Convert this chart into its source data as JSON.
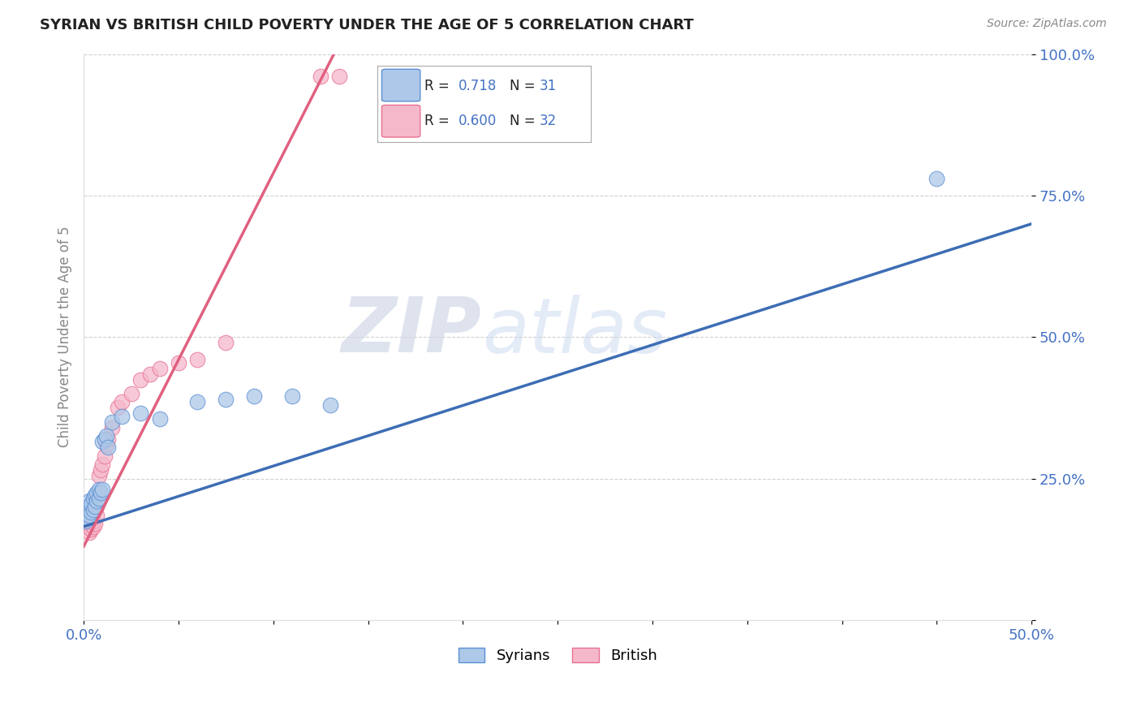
{
  "title": "SYRIAN VS BRITISH CHILD POVERTY UNDER THE AGE OF 5 CORRELATION CHART",
  "source": "Source: ZipAtlas.com",
  "ylabel": "Child Poverty Under the Age of 5",
  "watermark": "ZIPatlas",
  "xlim": [
    0.0,
    0.5
  ],
  "ylim": [
    0.0,
    1.0
  ],
  "xticks": [
    0.0,
    0.05,
    0.1,
    0.15,
    0.2,
    0.25,
    0.3,
    0.35,
    0.4,
    0.45,
    0.5
  ],
  "yticks": [
    0.0,
    0.25,
    0.5,
    0.75,
    1.0
  ],
  "ytick_labels": [
    "",
    "25.0%",
    "50.0%",
    "75.0%",
    "100.0%"
  ],
  "syrians_color": "#adc8e8",
  "british_color": "#f5b8cb",
  "syrians_edge_color": "#5b8fd4",
  "british_edge_color": "#e87090",
  "syrians_line_color": "#3d6db5",
  "british_line_color": "#e06080",
  "R_syrians": "0.718",
  "N_syrians": "31",
  "R_british": "0.600",
  "N_british": "32",
  "syrians_x": [
    0.001,
    0.002,
    0.002,
    0.003,
    0.003,
    0.004,
    0.004,
    0.005,
    0.005,
    0.006,
    0.006,
    0.007,
    0.007,
    0.008,
    0.008,
    0.009,
    0.01,
    0.01,
    0.011,
    0.012,
    0.013,
    0.015,
    0.02,
    0.03,
    0.04,
    0.06,
    0.075,
    0.09,
    0.11,
    0.13,
    0.45
  ],
  "syrians_y": [
    0.175,
    0.18,
    0.2,
    0.185,
    0.21,
    0.19,
    0.205,
    0.195,
    0.215,
    0.2,
    0.22,
    0.21,
    0.225,
    0.215,
    0.23,
    0.225,
    0.23,
    0.315,
    0.32,
    0.325,
    0.305,
    0.35,
    0.36,
    0.365,
    0.355,
    0.385,
    0.39,
    0.395,
    0.395,
    0.38,
    0.78
  ],
  "british_x": [
    0.001,
    0.001,
    0.002,
    0.002,
    0.003,
    0.003,
    0.004,
    0.005,
    0.005,
    0.006,
    0.006,
    0.007,
    0.007,
    0.008,
    0.008,
    0.009,
    0.01,
    0.011,
    0.012,
    0.013,
    0.015,
    0.018,
    0.02,
    0.025,
    0.03,
    0.035,
    0.04,
    0.05,
    0.06,
    0.075,
    0.125,
    0.135
  ],
  "british_y": [
    0.175,
    0.185,
    0.165,
    0.175,
    0.155,
    0.17,
    0.16,
    0.165,
    0.175,
    0.17,
    0.195,
    0.185,
    0.2,
    0.215,
    0.255,
    0.265,
    0.275,
    0.29,
    0.31,
    0.32,
    0.34,
    0.375,
    0.385,
    0.4,
    0.425,
    0.435,
    0.445,
    0.455,
    0.46,
    0.49,
    0.96,
    0.96
  ],
  "british_line_x0": 0.0,
  "british_line_y0": 0.13,
  "british_line_x1": 0.135,
  "british_line_y1": 1.02,
  "syrians_line_x0": 0.0,
  "syrians_line_y0": 0.165,
  "syrians_line_x1": 0.5,
  "syrians_line_y1": 0.7
}
